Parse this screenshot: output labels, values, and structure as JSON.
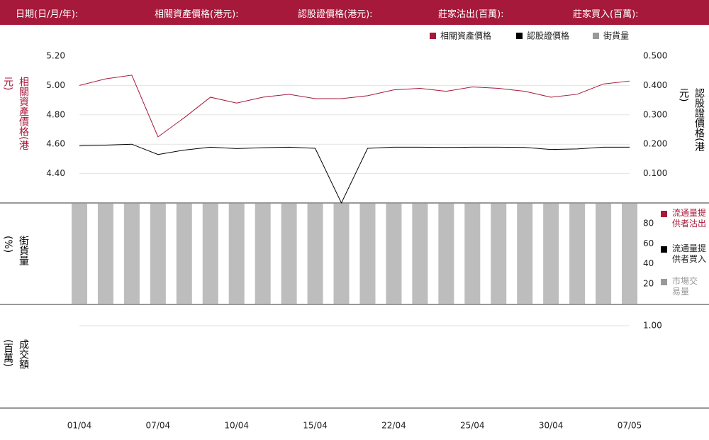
{
  "header": {
    "fields": [
      "日期(日/月/年):",
      "相關資產價格(港元):",
      "認股證價格(港元):",
      "莊家沽出(百萬):",
      "莊家買入(百萬):"
    ]
  },
  "chart_data": [
    {
      "type": "line",
      "ylabel": "相關資產價格(港元)",
      "y2label": "認股證價格(港元)",
      "series": [
        {
          "name": "相關資產價格",
          "color": "#a6193a",
          "values": [
            5.0,
            5.045,
            5.07,
            4.65,
            4.78,
            4.92,
            4.88,
            4.92,
            4.94,
            4.91,
            4.91,
            4.93,
            4.97,
            4.98,
            4.96,
            4.99,
            4.98,
            4.96,
            4.92,
            4.94,
            5.01,
            5.03
          ]
        },
        {
          "name": "認股證價格",
          "color": "#000000",
          "axis": "y2",
          "values": [
            0.194,
            0.197,
            0.2,
            0.165,
            0.18,
            0.19,
            0.185,
            0.188,
            0.19,
            0.186,
            0.0,
            0.186,
            0.19,
            0.19,
            0.189,
            0.19,
            0.19,
            0.189,
            0.182,
            0.184,
            0.19,
            0.19
          ]
        }
      ],
      "legend_extra": {
        "name": "街貨量",
        "color": "#999999"
      },
      "ylim": [
        4.2,
        5.2
      ],
      "yticks": [
        {
          "value": 4.4,
          "label": "4.40"
        },
        {
          "value": 4.6,
          "label": "4.60"
        },
        {
          "value": 4.8,
          "label": "4.80"
        },
        {
          "value": 5.0,
          "label": "5.00"
        },
        {
          "value": 5.2,
          "label": "5.20"
        }
      ],
      "y2lim": [
        0,
        0.5
      ],
      "y2ticks": [
        {
          "value": 0.1,
          "label": "0.100"
        },
        {
          "value": 0.2,
          "label": "0.200"
        },
        {
          "value": 0.3,
          "label": "0.300"
        },
        {
          "value": 0.4,
          "label": "0.400"
        },
        {
          "value": 0.5,
          "label": "0.500"
        }
      ],
      "grid": true
    },
    {
      "type": "bar",
      "ylabel": "街貨量(%)",
      "color": "#bdbdbd",
      "values": [
        100,
        100,
        100,
        100,
        100,
        100,
        100,
        100,
        100,
        100,
        100,
        100,
        100,
        100,
        100,
        100,
        100,
        100,
        100,
        100,
        100,
        100
      ],
      "ylim": [
        0,
        100
      ],
      "yticks": [
        20,
        40,
        60,
        80
      ],
      "legend": [
        {
          "name": "流通量提供者沽出",
          "color": "#a6193a"
        },
        {
          "name": "流通量提供者買入",
          "color": "#000000"
        },
        {
          "name": "市場交易量",
          "color": "#999999"
        }
      ]
    },
    {
      "type": "bar",
      "ylabel": "成交額(百萬)",
      "categories": [
        "01/04",
        null,
        null,
        "07/04",
        null,
        null,
        "10/04",
        null,
        null,
        "15/04",
        null,
        null,
        "22/04",
        null,
        null,
        "25/04",
        null,
        null,
        "30/04",
        null,
        null,
        "07/05"
      ],
      "ylim": [
        0,
        1.25
      ],
      "yticks": [
        {
          "value": 1.0,
          "label": "1.00"
        }
      ],
      "grid": true
    }
  ]
}
